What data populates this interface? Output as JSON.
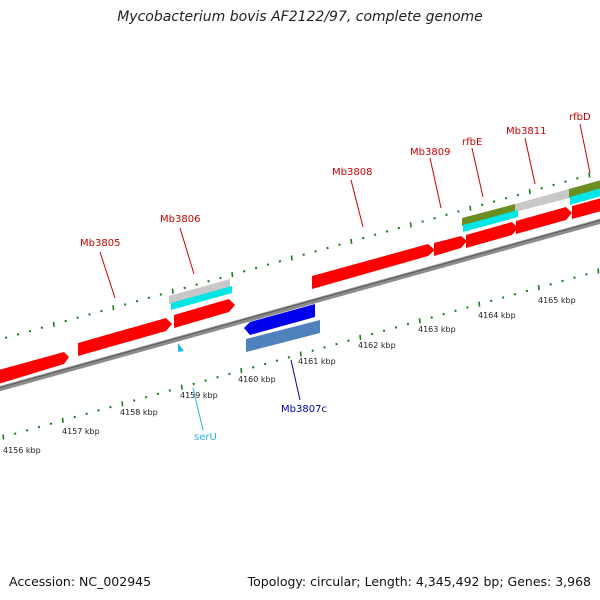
{
  "title": "Mycobacterium bovis AF2122/97, complete genome",
  "footer": {
    "accession": "Accession: NC_002945",
    "summary": "Topology: circular; Length: 4,345,492 bp; Genes: 3,968"
  },
  "colors": {
    "forward_gene": "#ff0000",
    "reverse_gene": "#0000ee",
    "cds_reverse": "#4f81bd",
    "trna": "#29b6e8",
    "cyan_feature": "#00e5e5",
    "grey_feature": "#c8c8c8",
    "olive_feature": "#6b8e23",
    "backbone": "#8c8c8c",
    "tick": "#1e7a1e",
    "forward_label": "#cc0000",
    "reverse_label": "#0000aa",
    "trna_label": "#29b6e8"
  },
  "scale_labels": [
    "4156 kbp",
    "4157 kbp",
    "4158 kbp",
    "4159 kbp",
    "4160 kbp",
    "4161 kbp",
    "4162 kbp",
    "4163 kbp",
    "4164 kbp",
    "4165 kbp"
  ],
  "gene_labels": {
    "Mb3805": "Mb3805",
    "Mb3806": "Mb3806",
    "Mb3808": "Mb3808",
    "Mb3809": "Mb3809",
    "rfbE": "rfbE",
    "Mb3811": "Mb3811",
    "rfbD": "rfbD",
    "Mb3807c": "Mb3807c",
    "serU": "serU"
  }
}
